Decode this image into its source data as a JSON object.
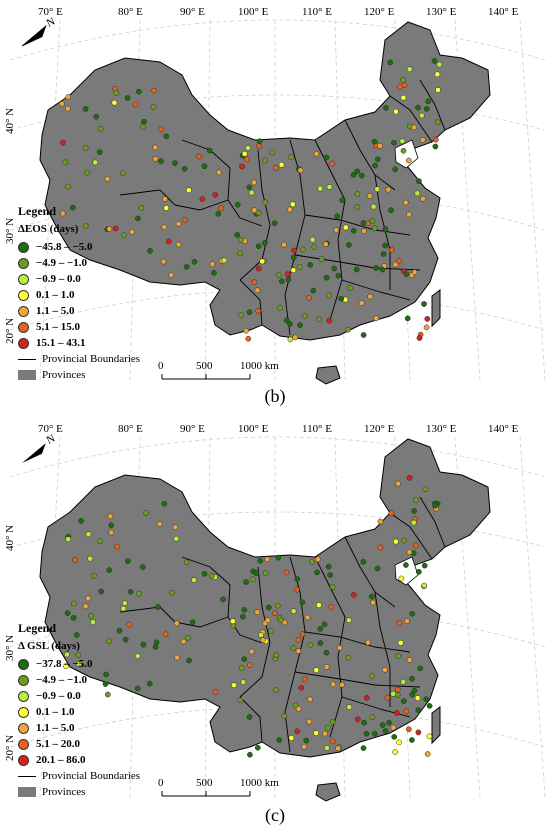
{
  "panels": [
    {
      "caption": "(b)",
      "legend_title": "Legend",
      "variable": "ΔEOS (days)",
      "classes": [
        {
          "label": "−45.8 – −5.0",
          "color": "#1e6b12"
        },
        {
          "label": "−4.9 – −1.0",
          "color": "#6a9f1e"
        },
        {
          "label": "−0.9 – 0.0",
          "color": "#b6f03a"
        },
        {
          "label": "0.1 – 1.0",
          "color": "#ffff33"
        },
        {
          "label": "1.1 – 5.0",
          "color": "#f2a43a"
        },
        {
          "label": "5.1 – 15.0",
          "color": "#e8631a"
        },
        {
          "label": "15.1 – 43.1",
          "color": "#d81f1f"
        }
      ],
      "boundary_label": "Provincial Boundaries",
      "province_label": "Provinces",
      "scale_labels": [
        "0",
        "500",
        "1000 km"
      ],
      "lon_labels": [
        "70° E",
        "80° E",
        "90° E",
        "100° E",
        "110° E",
        "120° E",
        "130° E",
        "140° E"
      ],
      "lat_labels": [
        "40° N",
        "30° N",
        "20° N"
      ]
    },
    {
      "caption": "(c)",
      "legend_title": "Legend",
      "variable": "Δ GSL (days)",
      "classes": [
        {
          "label": "−37.8 – −5.0",
          "color": "#1e6b12"
        },
        {
          "label": "−4.9 – −1.0",
          "color": "#6a9f1e"
        },
        {
          "label": "−0.9 – 0.0",
          "color": "#b6f03a"
        },
        {
          "label": "0.1 – 1.0",
          "color": "#ffff33"
        },
        {
          "label": "1.1 – 5.0",
          "color": "#f2a43a"
        },
        {
          "label": "5.1 – 20.0",
          "color": "#e8631a"
        },
        {
          "label": "20.1 – 86.0",
          "color": "#d81f1f"
        }
      ],
      "boundary_label": "Provincial Boundaries",
      "province_label": "Provinces",
      "scale_labels": [
        "0",
        "500",
        "1000 km"
      ],
      "lon_labels": [
        "70° E",
        "80° E",
        "90° E",
        "100° E",
        "110° E",
        "120° E",
        "130° E",
        "140° E"
      ],
      "lat_labels": [
        "40° N",
        "30° N",
        "20° N"
      ]
    }
  ],
  "colors": {
    "land": "#7a7a7a",
    "boundary": "#000000",
    "graticule": "#c8c8c8"
  },
  "icons": {
    "north": "north-arrow-icon"
  }
}
